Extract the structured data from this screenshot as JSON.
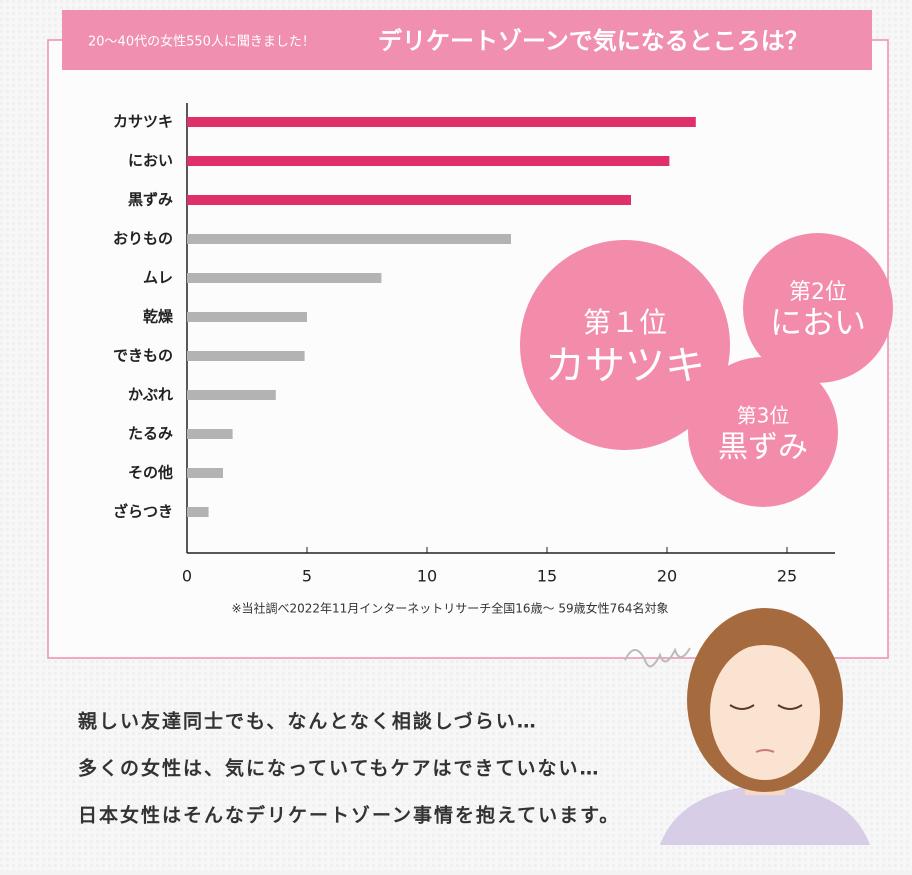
{
  "banner": {
    "lead": "20〜40代の女性550人に聞きました！",
    "title": "デリケートゾーンで気になるところは？"
  },
  "chart_data": {
    "type": "bar",
    "orientation": "horizontal",
    "categories": [
      "カサツキ",
      "におい",
      "黒ずみ",
      "おりもの",
      "ムレ",
      "乾燥",
      "できもの",
      "かぶれ",
      "たるみ",
      "その他",
      "ざらつき"
    ],
    "values": [
      21.2,
      20.1,
      18.5,
      13.5,
      8.1,
      5.0,
      4.9,
      3.7,
      1.9,
      1.5,
      0.9
    ],
    "colors": [
      "#e0306a",
      "#e0306a",
      "#e0306a",
      "#b3b3b3",
      "#b3b3b3",
      "#b3b3b3",
      "#b3b3b3",
      "#b3b3b3",
      "#b3b3b3",
      "#b3b3b3",
      "#b3b3b3"
    ],
    "xlim": [
      0,
      27
    ],
    "xticks": [
      0,
      5,
      10,
      15,
      20,
      25
    ],
    "grid": false
  },
  "footnote": "※当社調べ2022年11月インターネットリサーチ全国16歳〜 59歳女性764名対象",
  "badges": [
    {
      "rank": "第１位",
      "label": "カサツキ"
    },
    {
      "rank": "第2位",
      "label": "におい"
    },
    {
      "rank": "第3位",
      "label": "黒ずみ"
    }
  ],
  "message": [
    "親しい友達同士でも、なんとなく相談しづらい…",
    "多くの女性は、気になっていてもケアはできていない…",
    "日本女性はそんなデリケートゾーン事情を抱えています。"
  ]
}
